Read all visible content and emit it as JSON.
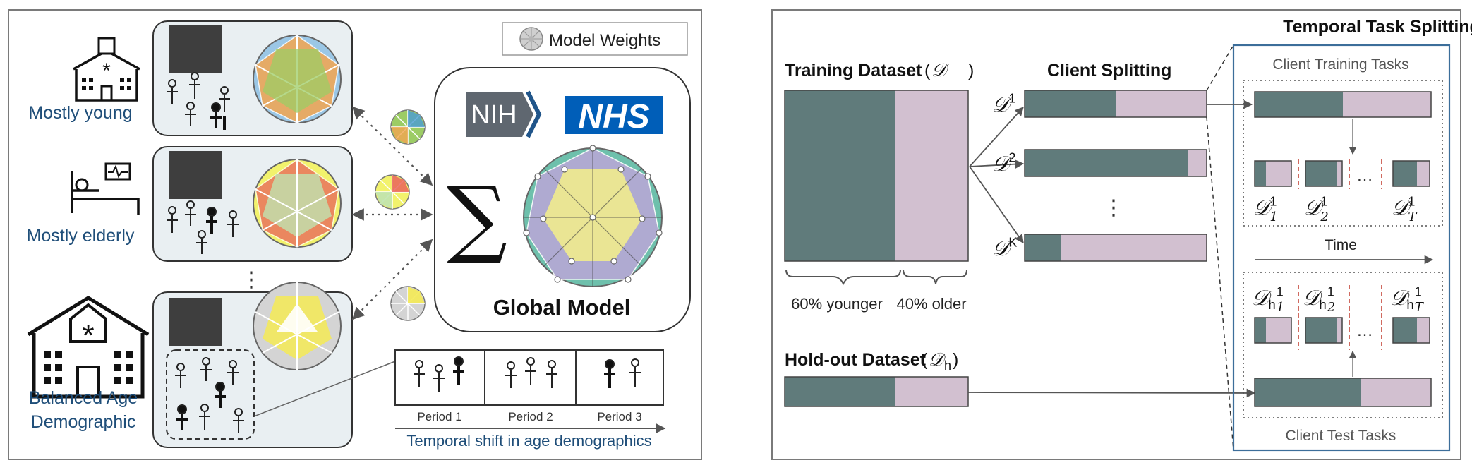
{
  "colors": {
    "teal": "#607b7b",
    "pink": "#d2c0d0",
    "panel_fill": "#e9eff2",
    "label_blue": "#1f4e79",
    "nhs_blue": "#005eb8",
    "nih_gray": "#5f6770"
  },
  "left_panel": {
    "legend_label": "Model Weights",
    "clients": [
      {
        "label_lines": [
          "Mostly young"
        ],
        "icon": "hospital-icon"
      },
      {
        "label_lines": [
          "Mostly elderly"
        ],
        "icon": "patient-bed-icon"
      },
      {
        "label_lines": [
          "Balanced Age",
          "Demographic"
        ],
        "icon": "large-hospital-icon"
      }
    ],
    "vertical_ellipsis": "⋮",
    "server": {
      "nih_logo": "NIH",
      "nhs_logo": "NHS",
      "sum_symbol": "∑",
      "title": "Global Model"
    },
    "periods": [
      "Period 1",
      "Period 2",
      "Period 3"
    ],
    "temporal_shift_label": "Temporal shift in age demographics"
  },
  "right_panel": {
    "training_dataset": {
      "label": "Training Dataset",
      "symbol": "𝒟",
      "younger_fraction": 0.6
    },
    "younger_label": "60% younger",
    "older_label": "40% older",
    "client_splitting_title": "Client Splitting",
    "clients": [
      {
        "base": "𝒟",
        "sup": "1",
        "teal_fraction": 0.5
      },
      {
        "base": "𝒟",
        "sup": "2",
        "teal_fraction": 0.9
      },
      {
        "base": "𝒟",
        "sup": "K",
        "teal_fraction": 0.2
      }
    ],
    "client_ellipsis": "⋮",
    "holdout_dataset": {
      "label": "Hold-out Dataset",
      "symbol": "𝒟",
      "sub": "h",
      "younger_fraction": 0.6
    },
    "temporal_task_title": "Temporal Task Splitting",
    "client_training_tasks_label": "Client Training Tasks",
    "client_test_tasks_label": "Client Test Tasks",
    "time_label": "Time",
    "task_ellipsis": "…",
    "training_tasks": [
      {
        "base": "𝒟",
        "sub": "1",
        "sup": "1",
        "teal_fraction": 0.3
      },
      {
        "base": "𝒟",
        "sub": "2",
        "sup": "1",
        "teal_fraction": 0.85
      },
      {
        "base": "𝒟",
        "sub": "T",
        "sup": "1",
        "teal_fraction": 0.65
      }
    ],
    "test_tasks": [
      {
        "base": "𝒟",
        "mid": "h",
        "sub": "1",
        "sup": "1",
        "teal_fraction": 0.3
      },
      {
        "base": "𝒟",
        "mid": "h",
        "sub": "2",
        "sup": "1",
        "teal_fraction": 0.85
      },
      {
        "base": "𝒟",
        "mid": "h",
        "sub": "T",
        "sup": "1",
        "teal_fraction": 0.65
      }
    ]
  }
}
